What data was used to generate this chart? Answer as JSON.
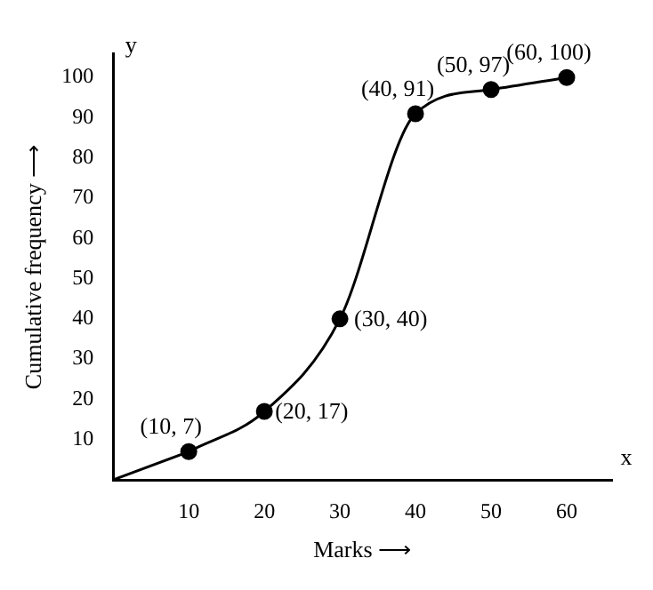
{
  "chart_data": {
    "type": "line",
    "xlabel": "Marks ⟶",
    "ylabel": "Cumulative frequency ⟶",
    "x": [
      10,
      20,
      30,
      40,
      50,
      60
    ],
    "series": [
      {
        "color": "#000000",
        "values": [
          7,
          17,
          40,
          91,
          97,
          100
        ]
      },
      {
        "color": "#000000",
        "x": [
          0,
          10
        ],
        "values": [
          0,
          7
        ],
        "marker": "none"
      }
    ],
    "xlim": [
      0,
      66
    ],
    "ylim": [
      0,
      106
    ],
    "xticks": [
      10,
      20,
      30,
      40,
      50,
      60
    ],
    "yticks": [
      10,
      20,
      30,
      40,
      50,
      60,
      70,
      80,
      90,
      100
    ],
    "grid": false,
    "legend": false,
    "marker": "circle",
    "line_style": "solid",
    "annotations": [
      {
        "text": "(10, 7)",
        "x": 10,
        "y": 7
      },
      {
        "text": "(20, 17)",
        "x": 20,
        "y": 17
      },
      {
        "text": "(30, 40)",
        "x": 30,
        "y": 40
      },
      {
        "text": "(40, 91)",
        "x": 40,
        "y": 91
      },
      {
        "text": "(50, 97)",
        "x": 50,
        "y": 97
      },
      {
        "text": "(60, 100)",
        "x": 60,
        "y": 100
      },
      "y",
      "x"
    ]
  }
}
